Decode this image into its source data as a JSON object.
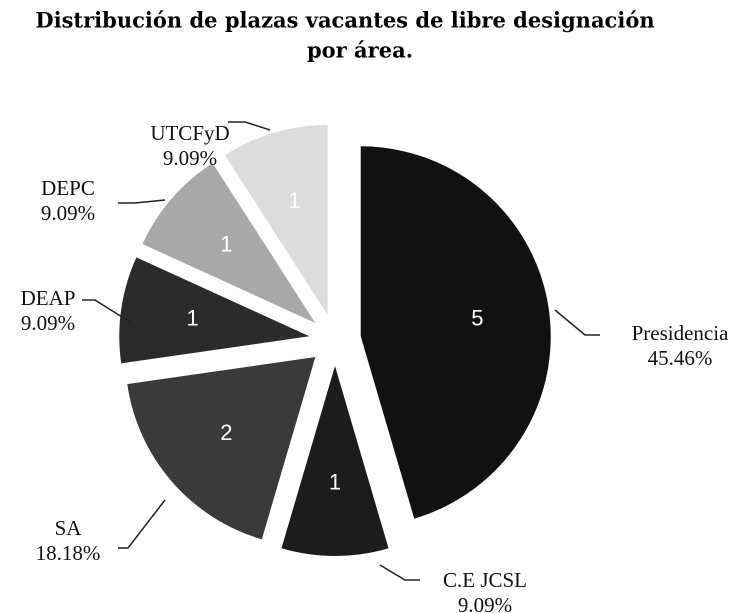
{
  "chart_data": {
    "type": "pie",
    "title": "Distribución de plazas vacantes de libre designación",
    "subtitle": "por área.",
    "categories": [
      "Presidencia",
      "C.E JCSL",
      "SA",
      "DEAP",
      "DEPC",
      "UTCFyD"
    ],
    "values": [
      5,
      1,
      2,
      1,
      1,
      1
    ],
    "percent_labels": [
      "45.46%",
      "9.09%",
      "18.18%",
      "9.09%",
      "9.09%",
      "9.09%"
    ],
    "colors": [
      "#111111",
      "#1c1c1c",
      "#3a3a3a",
      "#2b2b2b",
      "#a8a8a8",
      "#dcdcdc"
    ]
  }
}
